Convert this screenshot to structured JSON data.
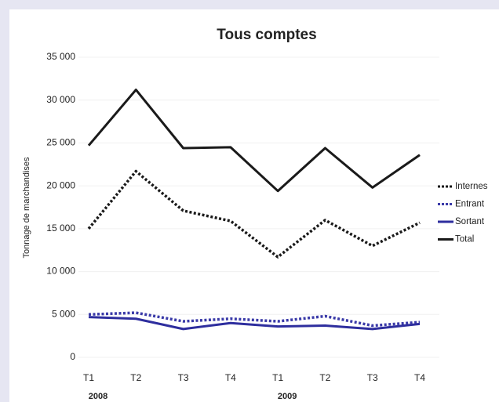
{
  "chart_data": {
    "type": "line",
    "title": "Tous comptes",
    "y_label": "Tonnage de marchandises",
    "categories": [
      "T1",
      "T2",
      "T3",
      "T4",
      "T1",
      "T2",
      "T3",
      "T4"
    ],
    "groups": [
      "2008",
      "2009"
    ],
    "series": [
      {
        "name": "Internes",
        "color": "#1a1a1a",
        "style": "dotted",
        "values": [
          15000,
          21700,
          17100,
          15900,
          11700,
          16000,
          13000,
          15700
        ]
      },
      {
        "name": "Entrant",
        "color": "#3a3aa8",
        "style": "dotted",
        "values": [
          5000,
          5200,
          4200,
          4500,
          4200,
          4800,
          3700,
          4100
        ]
      },
      {
        "name": "Sortant",
        "color": "#2e2e9e",
        "style": "solid",
        "values": [
          4700,
          4500,
          3300,
          4000,
          3600,
          3700,
          3300,
          3900
        ]
      },
      {
        "name": "Total",
        "color": "#1a1a1a",
        "style": "solid",
        "values": [
          24700,
          31200,
          24400,
          24500,
          19400,
          24400,
          19800,
          23600
        ]
      }
    ],
    "ylim": [
      0,
      35000
    ],
    "yticks": [
      0,
      {
        "value": 5000,
        "label": "5 000"
      },
      {
        "value": 10000,
        "label": "10 000"
      },
      {
        "value": 15000,
        "label": "15 000"
      },
      {
        "value": 20000,
        "label": "20 000"
      },
      {
        "value": 25000,
        "label": "25 000"
      },
      {
        "value": 30000,
        "label": "30 000"
      },
      {
        "value": 35000,
        "label": "35 000"
      }
    ],
    "grid": true,
    "legend": "right"
  }
}
